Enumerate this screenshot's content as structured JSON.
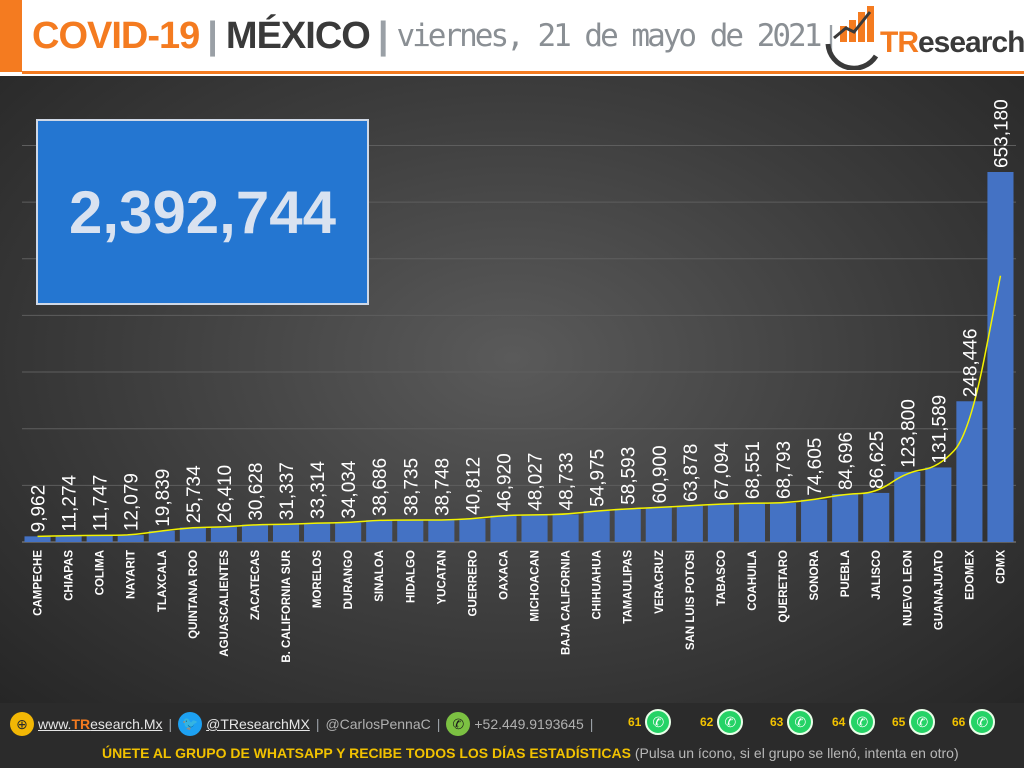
{
  "header": {
    "title_covid": "COVID-19",
    "separator": "|",
    "title_country": "MÉXICO",
    "date": "viernes, 21 de mayo de 2021",
    "date_sep": "|",
    "logo_tr": "TR",
    "logo_rest": "esearch",
    "accent_color": "#f47b20"
  },
  "total": "2,392,744",
  "chart_data": {
    "type": "bar",
    "title": "",
    "xlabel": "",
    "ylabel": "",
    "ylim": [
      0,
      700000
    ],
    "grid": true,
    "bar_color": "#4472c4",
    "trend_color": "#f2f200",
    "categories": [
      "CAMPECHE",
      "CHIAPAS",
      "COLIMA",
      "NAYARIT",
      "TLAXCALA",
      "QUINTANA ROO",
      "AGUASCALIENTES",
      "ZACATECAS",
      "B. CALIFORNIA SUR",
      "MORELOS",
      "DURANGO",
      "SINALOA",
      "HIDALGO",
      "YUCATAN",
      "GUERRERO",
      "OAXACA",
      "MICHOACAN",
      "BAJA CALIFORNIA",
      "CHIHUAHUA",
      "TAMAULIPAS",
      "VERACRUZ",
      "SAN LUIS POTOSI",
      "TABASCO",
      "COAHUILA",
      "QUERETARO",
      "SONORA",
      "PUEBLA",
      "JALISCO",
      "NUEVO LEON",
      "GUANAJUATO",
      "EDOMEX",
      "CDMX"
    ],
    "values": [
      9962,
      11274,
      11747,
      12079,
      19839,
      25734,
      26410,
      30628,
      31337,
      33314,
      34034,
      38686,
      38735,
      38748,
      40812,
      46920,
      48027,
      48733,
      54975,
      58593,
      60900,
      63878,
      67094,
      68551,
      68793,
      74605,
      84696,
      86625,
      123800,
      131589,
      248446,
      653180
    ],
    "value_labels": [
      "9,962",
      "11,274",
      "11,747",
      "12,079",
      "19,839",
      "25,734",
      "26,410",
      "30,628",
      "31,337",
      "33,314",
      "34,034",
      "38,686",
      "38,735",
      "38,748",
      "40,812",
      "46,920",
      "48,027",
      "48,733",
      "54,975",
      "58,593",
      "60,900",
      "63,878",
      "67,094",
      "68,551",
      "68,793",
      "74,605",
      "84,696",
      "86,625",
      "123,800",
      "131,589",
      "248,446",
      "653,180"
    ]
  },
  "footer": {
    "website_prefix": "www.",
    "website_brand": "TR",
    "website_rest": "esearch.Mx",
    "twitter": "@TResearchMX",
    "author": "@CarlosPennaC",
    "phone": "+52.449.9193645",
    "sep": "|",
    "whatsapp_groups": [
      "61",
      "62",
      "63",
      "64",
      "65",
      "66"
    ],
    "cta_main": "ÚNETE AL GRUPO DE WHATSAPP Y RECIBE TODOS LOS DÍAS ESTADÍSTICAS",
    "cta_note": "(Pulsa un ícono, si el grupo se llenó, intenta en otro)",
    "icons": [
      "globe-icon",
      "twitter-icon",
      "phone-icon",
      "whatsapp-icon"
    ]
  }
}
